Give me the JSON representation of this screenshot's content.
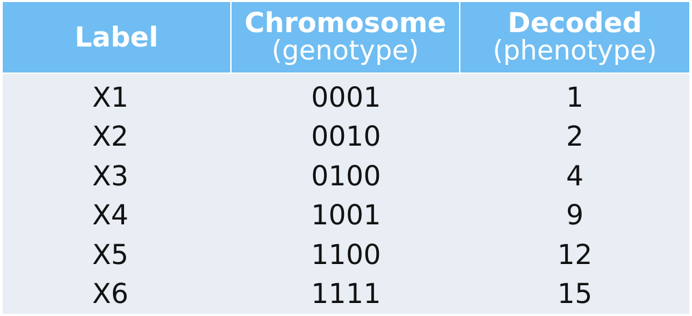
{
  "table": {
    "headers": [
      {
        "main": "Label",
        "sub": ""
      },
      {
        "main": "Chromosome",
        "sub": "(genotype)"
      },
      {
        "main": "Decoded",
        "sub": "(phenotype)"
      }
    ],
    "rows": [
      {
        "label": "X1",
        "chromosome": "0001",
        "decoded": "1"
      },
      {
        "label": "X2",
        "chromosome": "0010",
        "decoded": "2"
      },
      {
        "label": "X3",
        "chromosome": "0100",
        "decoded": "4"
      },
      {
        "label": "X4",
        "chromosome": "1001",
        "decoded": "9"
      },
      {
        "label": "X5",
        "chromosome": "1100",
        "decoded": "12"
      },
      {
        "label": "X6",
        "chromosome": "1111",
        "decoded": "15"
      }
    ]
  },
  "colors": {
    "header_bg": "#6fbdf2",
    "body_bg": "#e8eef3",
    "header_text": "#ffffff"
  }
}
